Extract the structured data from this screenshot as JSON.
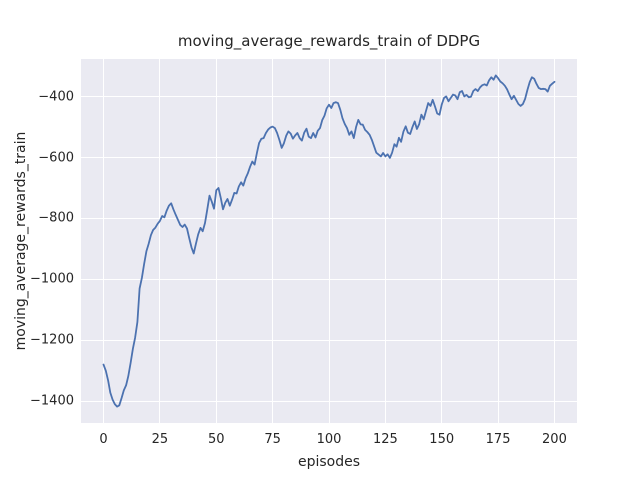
{
  "figure": {
    "title": "moving_average_rewards_train of DDPG",
    "xlabel": "episodes",
    "ylabel": "moving_average_rewards_train"
  },
  "chart_data": {
    "type": "line",
    "title": "moving_average_rewards_train of DDPG",
    "xlabel": "episodes",
    "ylabel": "moving_average_rewards_train",
    "legend": "none",
    "grid": true,
    "grid_color": "#FFFFFF",
    "plot_background": "#EAEAF2",
    "figure_background": "#FFFFFF",
    "text_color": "#262626",
    "line_color": "#4C72B0",
    "line_width": 1.8,
    "xlim": [
      -10,
      210
    ],
    "ylim": [
      -1472,
      -276
    ],
    "xticks": [
      0,
      25,
      50,
      75,
      100,
      125,
      150,
      175,
      200
    ],
    "xtick_labels": [
      "0",
      "25",
      "50",
      "75",
      "100",
      "125",
      "150",
      "175",
      "200"
    ],
    "yticks": [
      -400,
      -600,
      -800,
      -1000,
      -1200,
      -1400
    ],
    "ytick_labels": [
      "−400",
      "−600",
      "−800",
      "−1000",
      "−1200",
      "−1400"
    ],
    "series": [
      {
        "name": "moving_average_rewards_train",
        "x": [
          0,
          1,
          2,
          3,
          4,
          5,
          6,
          7,
          8,
          9,
          10,
          11,
          12,
          13,
          14,
          15,
          16,
          17,
          18,
          19,
          20,
          21,
          22,
          23,
          24,
          25,
          26,
          27,
          28,
          29,
          30,
          31,
          32,
          33,
          34,
          35,
          36,
          37,
          38,
          39,
          40,
          41,
          42,
          43,
          44,
          45,
          46,
          47,
          48,
          49,
          50,
          51,
          52,
          53,
          54,
          55,
          56,
          57,
          58,
          59,
          60,
          61,
          62,
          63,
          64,
          65,
          66,
          67,
          68,
          69,
          70,
          71,
          72,
          73,
          74,
          75,
          76,
          77,
          78,
          79,
          80,
          81,
          82,
          83,
          84,
          85,
          86,
          87,
          88,
          89,
          90,
          91,
          92,
          93,
          94,
          95,
          96,
          97,
          98,
          99,
          100,
          101,
          102,
          103,
          104,
          105,
          106,
          107,
          108,
          109,
          110,
          111,
          112,
          113,
          114,
          115,
          116,
          117,
          118,
          119,
          120,
          121,
          122,
          123,
          124,
          125,
          126,
          127,
          128,
          129,
          130,
          131,
          132,
          133,
          134,
          135,
          136,
          137,
          138,
          139,
          140,
          141,
          142,
          143,
          144,
          145,
          146,
          147,
          148,
          149,
          150,
          151,
          152,
          153,
          154,
          155,
          156,
          157,
          158,
          159,
          160,
          161,
          162,
          163,
          164,
          165,
          166,
          167,
          168,
          169,
          170,
          171,
          172,
          173,
          174,
          175,
          176,
          177,
          178,
          179,
          180,
          181,
          182,
          183,
          184,
          185,
          186,
          187,
          188,
          189,
          190,
          191,
          192,
          193,
          194,
          195,
          196,
          197,
          198,
          199,
          200
        ],
        "y": [
          -1280,
          -1300,
          -1332,
          -1372,
          -1395,
          -1410,
          -1418,
          -1414,
          -1390,
          -1365,
          -1348,
          -1318,
          -1275,
          -1228,
          -1192,
          -1140,
          -1030,
          -995,
          -950,
          -908,
          -884,
          -855,
          -838,
          -830,
          -817,
          -808,
          -792,
          -796,
          -774,
          -758,
          -750,
          -770,
          -788,
          -804,
          -821,
          -828,
          -820,
          -833,
          -864,
          -895,
          -915,
          -882,
          -852,
          -831,
          -842,
          -815,
          -770,
          -725,
          -745,
          -768,
          -707,
          -700,
          -733,
          -770,
          -748,
          -736,
          -758,
          -738,
          -716,
          -718,
          -695,
          -681,
          -692,
          -668,
          -652,
          -630,
          -613,
          -623,
          -585,
          -552,
          -538,
          -536,
          -519,
          -508,
          -501,
          -498,
          -503,
          -519,
          -542,
          -568,
          -553,
          -528,
          -514,
          -521,
          -538,
          -527,
          -519,
          -536,
          -544,
          -518,
          -505,
          -531,
          -536,
          -519,
          -534,
          -512,
          -503,
          -477,
          -462,
          -438,
          -426,
          -437,
          -421,
          -418,
          -421,
          -443,
          -471,
          -490,
          -503,
          -525,
          -514,
          -536,
          -499,
          -476,
          -491,
          -492,
          -509,
          -516,
          -525,
          -541,
          -563,
          -584,
          -590,
          -596,
          -585,
          -596,
          -589,
          -601,
          -584,
          -556,
          -564,
          -535,
          -548,
          -515,
          -497,
          -518,
          -522,
          -500,
          -481,
          -506,
          -490,
          -459,
          -474,
          -448,
          -421,
          -430,
          -410,
          -432,
          -455,
          -459,
          -426,
          -404,
          -399,
          -415,
          -404,
          -393,
          -396,
          -408,
          -385,
          -381,
          -399,
          -394,
          -402,
          -400,
          -381,
          -375,
          -381,
          -369,
          -362,
          -359,
          -363,
          -346,
          -336,
          -344,
          -330,
          -339,
          -350,
          -356,
          -364,
          -376,
          -393,
          -408,
          -397,
          -410,
          -424,
          -430,
          -424,
          -407,
          -378,
          -352,
          -336,
          -341,
          -357,
          -371,
          -375,
          -374,
          -375,
          -383,
          -364,
          -357,
          -351
        ]
      }
    ]
  }
}
